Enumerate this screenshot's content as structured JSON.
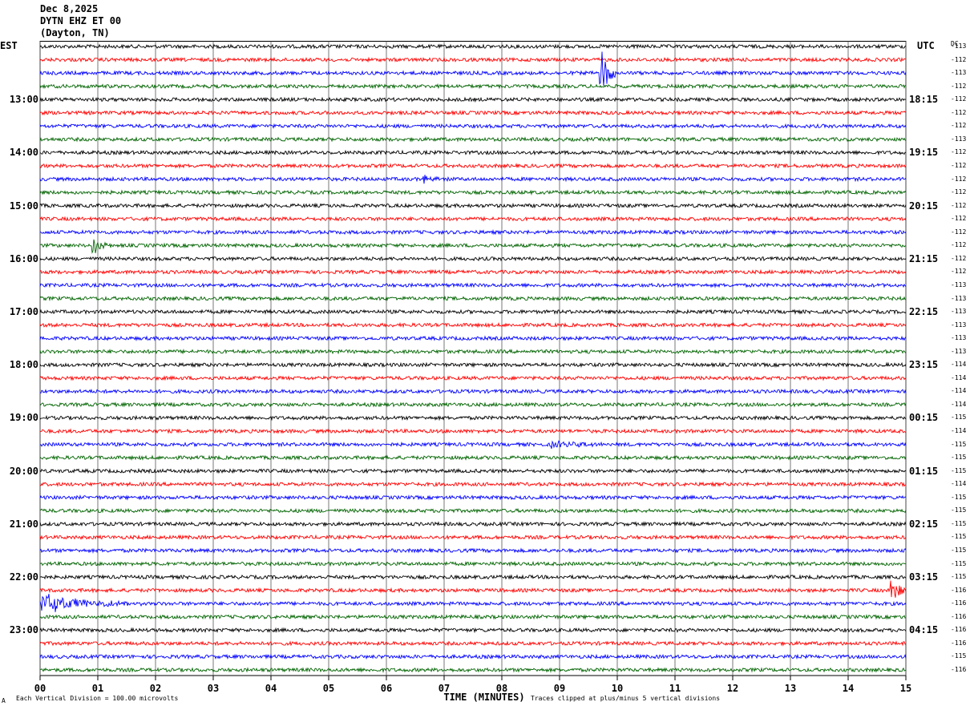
{
  "header": {
    "date": "Dec 8,2025",
    "station": "DYTN EHZ ET 00",
    "location": "(Dayton, TN)"
  },
  "left_tz": "EST",
  "right_tz": "UTC",
  "dc_label": "DC",
  "footer": {
    "scale": "Each Vertical Division =  100.00 microvolts",
    "clip": "Traces clipped at plus/minus 5 vertical divisions",
    "mark": "A"
  },
  "chart_data": {
    "type": "line",
    "title": "",
    "xlabel": "TIME (MINUTES)",
    "ylabel": "",
    "xlim": [
      0,
      15
    ],
    "x_ticks": [
      "00",
      "01",
      "02",
      "03",
      "04",
      "05",
      "06",
      "07",
      "08",
      "09",
      "10",
      "11",
      "12",
      "13",
      "14",
      "15"
    ],
    "grid": "vertical lines at each minute",
    "trace_colors": [
      "#000000",
      "#ff0000",
      "#0000ff",
      "#006400"
    ],
    "left_time_labels": [
      {
        "trace": 4,
        "label": "13:00"
      },
      {
        "trace": 8,
        "label": "14:00"
      },
      {
        "trace": 12,
        "label": "15:00"
      },
      {
        "trace": 16,
        "label": "16:00"
      },
      {
        "trace": 20,
        "label": "17:00"
      },
      {
        "trace": 24,
        "label": "18:00"
      },
      {
        "trace": 28,
        "label": "19:00"
      },
      {
        "trace": 32,
        "label": "20:00"
      },
      {
        "trace": 36,
        "label": "21:00"
      },
      {
        "trace": 40,
        "label": "22:00"
      },
      {
        "trace": 44,
        "label": "23:00"
      }
    ],
    "right_time_labels": [
      {
        "trace": 4,
        "label": "18:15"
      },
      {
        "trace": 8,
        "label": "19:15"
      },
      {
        "trace": 12,
        "label": "20:15"
      },
      {
        "trace": 16,
        "label": "21:15"
      },
      {
        "trace": 20,
        "label": "22:15"
      },
      {
        "trace": 24,
        "label": "23:15"
      },
      {
        "trace": 28,
        "label": "00:15"
      },
      {
        "trace": 32,
        "label": "01:15"
      },
      {
        "trace": 36,
        "label": "02:15"
      },
      {
        "trace": 40,
        "label": "03:15"
      },
      {
        "trace": 44,
        "label": "04:15"
      }
    ],
    "dc_offsets": [
      "-113",
      "-112",
      "-113",
      "-112",
      "-112",
      "-112",
      "-112",
      "-113",
      "-112",
      "-112",
      "-112",
      "-112",
      "-112",
      "-112",
      "-112",
      "-112",
      "-112",
      "-112",
      "-113",
      "-113",
      "-113",
      "-113",
      "-113",
      "-113",
      "-114",
      "-114",
      "-114",
      "-114",
      "-115",
      "-114",
      "-115",
      "-115",
      "-115",
      "-114",
      "-115",
      "-115",
      "-115",
      "-115",
      "-115",
      "-115",
      "-115",
      "-116",
      "-116",
      "-116",
      "-116",
      "-116",
      "-115",
      "-116"
    ],
    "events": [
      {
        "trace": 2,
        "minute": 9.72,
        "amplitude": 1.9,
        "duration_min": 0.35
      },
      {
        "trace": 15,
        "minute": 0.92,
        "amplitude": 0.7,
        "duration_min": 0.4
      },
      {
        "trace": 41,
        "minute": 14.75,
        "amplitude": 1.4,
        "duration_min": 0.3
      },
      {
        "trace": 42,
        "minute": 0.0,
        "amplitude": 0.8,
        "duration_min": 2.0
      },
      {
        "trace": 10,
        "minute": 6.65,
        "amplitude": 0.3,
        "duration_min": 0.5
      },
      {
        "trace": 30,
        "minute": 8.85,
        "amplitude": 0.25,
        "duration_min": 1.2
      }
    ]
  }
}
